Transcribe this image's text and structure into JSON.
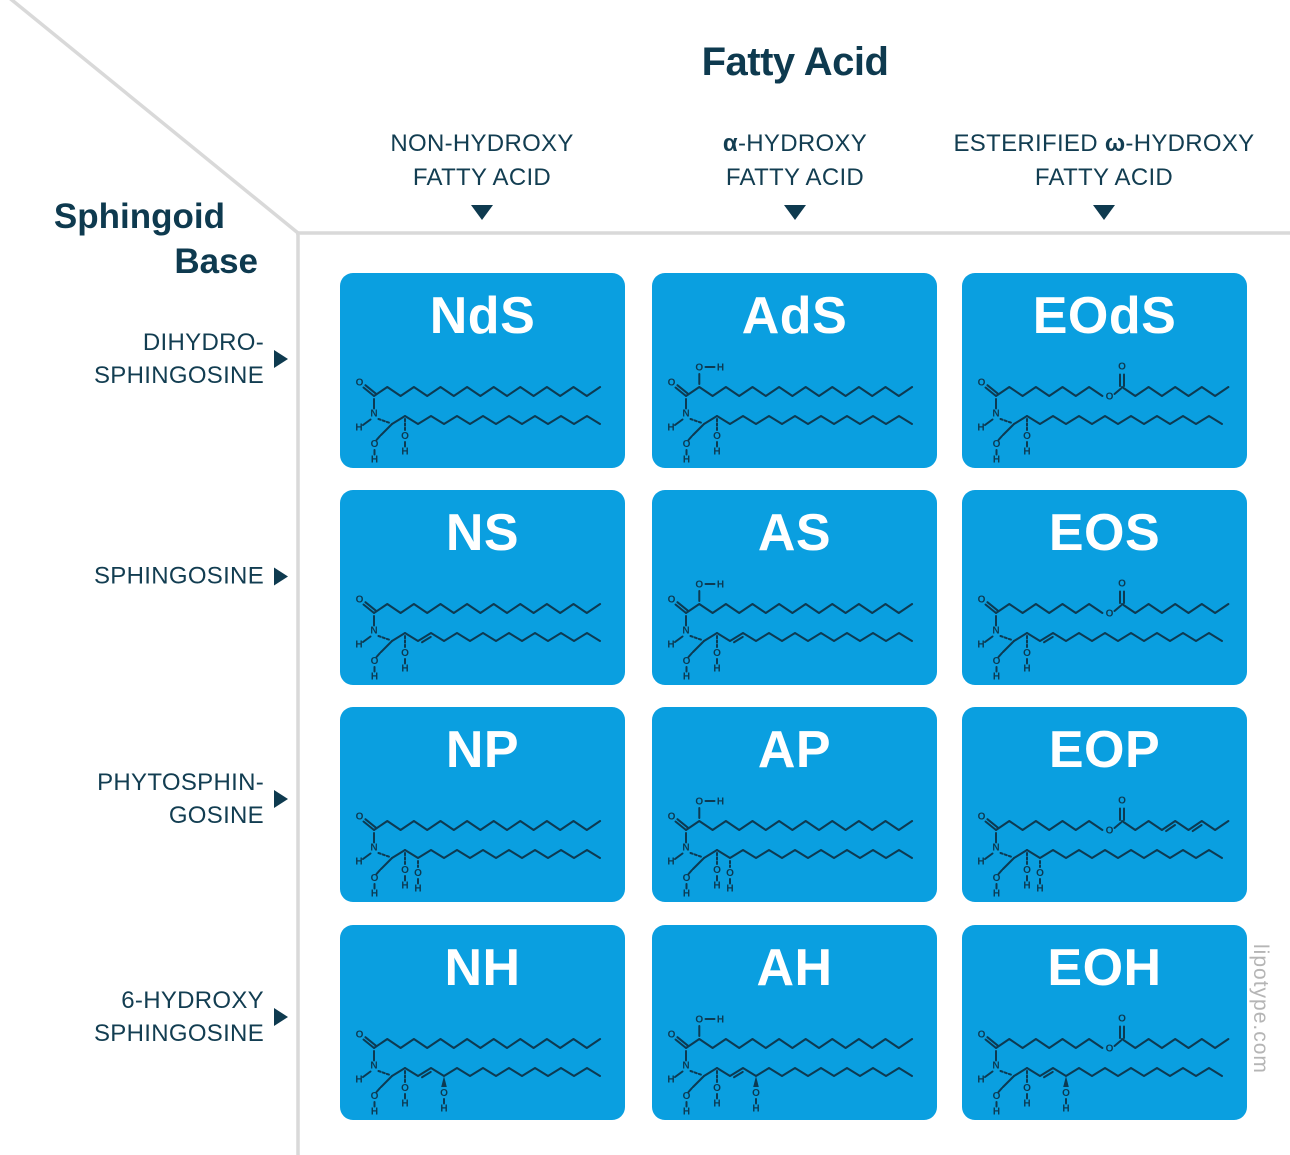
{
  "colors": {
    "card_blue": "#0a9fe0",
    "heading_ink": "#0e3a4f",
    "label_ink": "#123d51",
    "grid_line": "#d9d9d9",
    "structure_ink": "#0d3a52",
    "code_white": "#ffffff",
    "watermark_gray": "#b5b5b5"
  },
  "fatty_axis": {
    "title": "Fatty Acid",
    "columns": [
      {
        "line1": "NON-HYDROXY",
        "line2": "FATTY ACID"
      },
      {
        "greek": "α",
        "line1_rest": "-HYDROXY",
        "line2": "FATTY ACID"
      },
      {
        "line1_pre": "ESTERIFIED ",
        "greek": "ω",
        "line1_rest": "-HYDROXY",
        "line2": "FATTY ACID"
      }
    ]
  },
  "sphingoid_axis": {
    "title_line1": "Sphingoid",
    "title_line2": "Base",
    "rows": [
      {
        "line1": "DIHYDRO-",
        "line2": "SPHINGOSINE"
      },
      {
        "line1": "SPHINGOSINE",
        "line2": ""
      },
      {
        "line1": "PHYTOSPHIN-",
        "line2": "GOSINE"
      },
      {
        "line1": "6-HYDROXY",
        "line2": "SPHINGOSINE"
      }
    ]
  },
  "grid": {
    "cards": [
      {
        "code": "NdS",
        "fatty": "N",
        "base": "dS"
      },
      {
        "code": "AdS",
        "fatty": "A",
        "base": "dS"
      },
      {
        "code": "EOdS",
        "fatty": "EO",
        "base": "dS"
      },
      {
        "code": "NS",
        "fatty": "N",
        "base": "S"
      },
      {
        "code": "AS",
        "fatty": "A",
        "base": "S"
      },
      {
        "code": "EOS",
        "fatty": "EO",
        "base": "S"
      },
      {
        "code": "NP",
        "fatty": "N",
        "base": "P"
      },
      {
        "code": "AP",
        "fatty": "A",
        "base": "P"
      },
      {
        "code": "EOP",
        "fatty": "EO",
        "base": "P",
        "ester_double_bonds": true
      },
      {
        "code": "NH",
        "fatty": "N",
        "base": "H"
      },
      {
        "code": "AH",
        "fatty": "A",
        "base": "H"
      },
      {
        "code": "EOH",
        "fatty": "EO",
        "base": "H"
      }
    ]
  },
  "watermark": "lipotype.com"
}
